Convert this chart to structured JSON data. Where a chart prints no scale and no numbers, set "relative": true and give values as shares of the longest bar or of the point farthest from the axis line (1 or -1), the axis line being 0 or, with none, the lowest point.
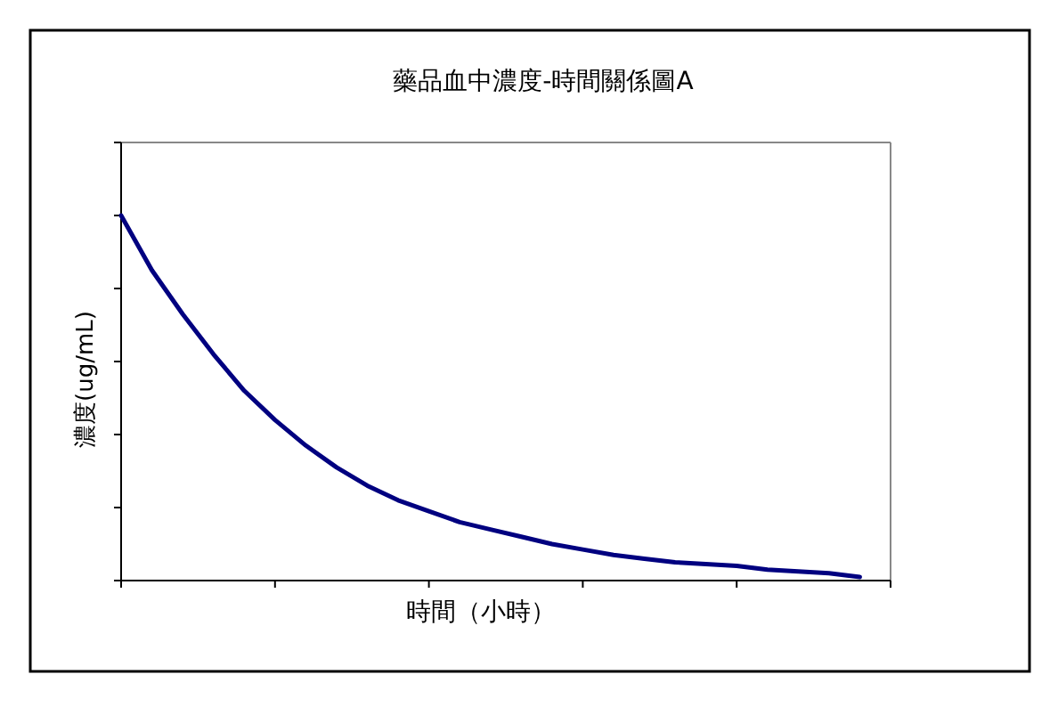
{
  "chart_data": {
    "type": "line",
    "title": "藥品血中濃度-時間關係圖A",
    "xlabel": "時間（小時）",
    "ylabel": "濃度(ug/mL)",
    "relative": true,
    "categories": [
      null,
      null,
      null,
      null,
      null,
      null,
      null,
      null,
      null,
      null,
      null,
      null,
      null,
      null,
      null,
      null,
      null,
      null,
      null,
      null,
      null,
      null,
      null,
      null,
      null,
      null
    ],
    "series": [
      {
        "color": "#000080",
        "values": [
          1,
          0.85,
          0.73,
          0.62,
          0.52,
          0.44,
          0.37,
          0.31,
          0.26,
          0.22,
          0.19,
          0.16,
          0.14,
          0.12,
          0.1,
          0.085,
          0.07,
          0.06,
          0.05,
          0.045,
          0.04,
          0.03,
          0.025,
          0.02,
          0.01,
          null
        ]
      }
    ],
    "marker": "none",
    "line_style": "solid",
    "grid": false
  }
}
